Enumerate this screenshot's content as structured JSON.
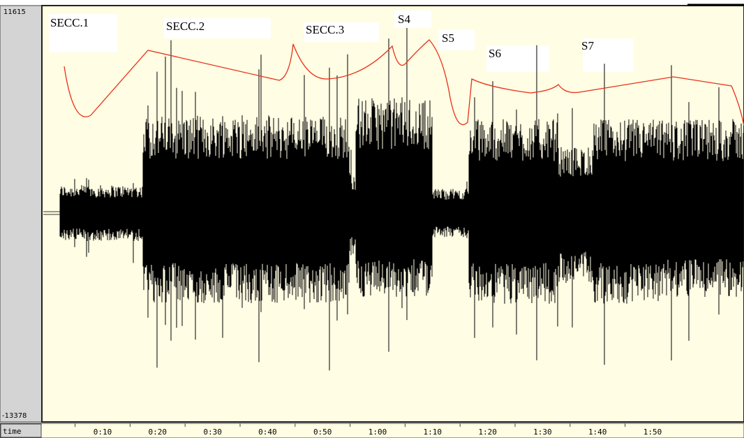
{
  "amplitude": {
    "max": "11615",
    "min": "-13378"
  },
  "time_axis": {
    "label": "time",
    "ticks": [
      "0:10",
      "0:20",
      "0:30",
      "0:40",
      "0:50",
      "1:00",
      "1:10",
      "1:20",
      "1:30",
      "1:40",
      "1:50"
    ]
  },
  "sections": [
    "SECC.1",
    "SECC.2",
    "SECC.3",
    "S4",
    "S5",
    "S6",
    "S7"
  ]
}
